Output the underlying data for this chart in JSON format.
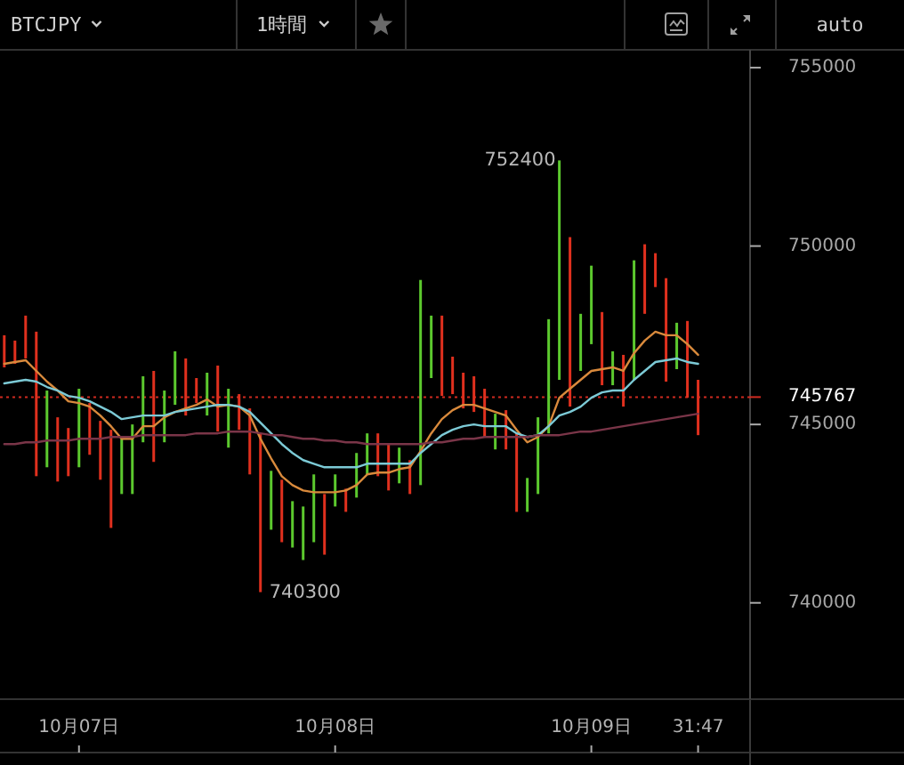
{
  "chart_data": {
    "type": "bar",
    "title": "BTCJPY",
    "subtitle": "1時間",
    "annotations": [
      "752400",
      "740300",
      "auto"
    ],
    "categories": [
      null,
      null,
      null,
      null,
      null,
      null,
      null,
      "10月07日",
      null,
      null,
      null,
      null,
      null,
      null,
      null,
      null,
      null,
      null,
      null,
      null,
      null,
      null,
      null,
      null,
      null,
      null,
      null,
      null,
      null,
      null,
      null,
      "10月08日",
      null,
      null,
      null,
      null,
      null,
      null,
      null,
      null,
      null,
      null,
      null,
      null,
      null,
      null,
      null,
      null,
      null,
      null,
      null,
      null,
      null,
      null,
      null,
      "10月09日",
      null,
      null,
      null,
      null,
      null,
      null,
      null,
      null,
      null,
      "31:47"
    ],
    "ylim": [
      737300,
      755500
    ],
    "yticks": [
      740000,
      745000,
      750000,
      755000
    ],
    "series": [
      {
        "base": [
          746600,
          746700,
          746850,
          743550,
          743800,
          743400,
          743550,
          743800,
          744150,
          743450,
          742100,
          743050,
          743050,
          744500,
          743950,
          744500,
          745550,
          745250,
          745600,
          745250,
          744800,
          744350,
          744850,
          743600,
          740300,
          742050,
          741700,
          741550,
          741200,
          741700,
          741350,
          742700,
          742550,
          742950,
          743600,
          743550,
          743150,
          743350,
          743050,
          743300,
          746300,
          745800,
          745850,
          745450,
          745350,
          744650,
          744300,
          744300,
          742550,
          742550,
          743050,
          744750,
          746250,
          745500,
          746500,
          747250,
          746100,
          746100,
          745500,
          746250,
          748100,
          748850,
          746200,
          746550,
          745750,
          744700
        ],
        "values": [
          900,
          650,
          1200,
          4050,
          2150,
          1800,
          1350,
          2200,
          1450,
          1650,
          2750,
          1550,
          1950,
          1850,
          2550,
          1450,
          1500,
          1600,
          700,
          1200,
          1850,
          1650,
          1000,
          1850,
          4450,
          1650,
          1750,
          1300,
          1500,
          1900,
          1700,
          900,
          650,
          1250,
          1150,
          1200,
          1300,
          1000,
          950,
          5750,
          1750,
          2250,
          1050,
          1000,
          1000,
          1350,
          1000,
          1100,
          2200,
          950,
          2150,
          3200,
          6150,
          4750,
          1600,
          2200,
          2050,
          950,
          1450,
          3350,
          1950,
          950,
          2900,
          1300,
          2150,
          1550
        ],
        "colors": [
          "#e0301e",
          "#e0301e",
          "#e0301e",
          "#e0301e",
          "#5cc92e",
          "#e0301e",
          "#e0301e",
          "#5cc92e",
          "#e0301e",
          "#e0301e",
          "#e0301e",
          "#5cc92e",
          "#5cc92e",
          "#5cc92e",
          "#e0301e",
          "#5cc92e",
          "#5cc92e",
          "#e0301e",
          "#e0301e",
          "#5cc92e",
          "#e0301e",
          "#5cc92e",
          "#e0301e",
          "#e0301e",
          "#e0301e",
          "#5cc92e",
          "#e0301e",
          "#5cc92e",
          "#5cc92e",
          "#5cc92e",
          "#e0301e",
          "#5cc92e",
          "#e0301e",
          "#5cc92e",
          "#5cc92e",
          "#e0301e",
          "#e0301e",
          "#5cc92e",
          "#e0301e",
          "#5cc92e",
          "#5cc92e",
          "#e0301e",
          "#e0301e",
          "#e0301e",
          "#e0301e",
          "#e0301e",
          "#5cc92e",
          "#e0301e",
          "#e0301e",
          "#5cc92e",
          "#5cc92e",
          "#5cc92e",
          "#5cc92e",
          "#e0301e",
          "#5cc92e",
          "#5cc92e",
          "#e0301e",
          "#5cc92e",
          "#e0301e",
          "#5cc92e",
          "#e0301e",
          "#e0301e",
          "#e0301e",
          "#5cc92e",
          "#e0301e",
          "#e0301e"
        ]
      },
      {
        "type": "line",
        "color": "#d98a3c",
        "values": [
          746700,
          746750,
          746800,
          746500,
          746200,
          745950,
          745650,
          745600,
          745500,
          745250,
          744950,
          744600,
          744600,
          744950,
          744950,
          745200,
          745350,
          745450,
          745550,
          745700,
          745500,
          745550,
          745500,
          745250,
          744600,
          744050,
          743550,
          743300,
          743150,
          743100,
          743100,
          743100,
          743150,
          743300,
          743600,
          743650,
          743650,
          743750,
          743800,
          744250,
          744750,
          745150,
          745400,
          745550,
          745550,
          745450,
          745350,
          745250,
          744850,
          744500,
          744650,
          744950,
          745750,
          746000,
          746250,
          746500,
          746550,
          746600,
          746500,
          747000,
          747350,
          747600,
          747500,
          747500,
          747250,
          746950
        ]
      },
      {
        "type": "line",
        "color": "#7ccad6",
        "values": [
          746150,
          746200,
          746250,
          746200,
          746050,
          745950,
          745800,
          745750,
          745650,
          745500,
          745350,
          745150,
          745200,
          745250,
          745250,
          745250,
          745350,
          745400,
          745450,
          745500,
          745550,
          745550,
          745500,
          745350,
          745050,
          744750,
          744450,
          744200,
          744000,
          743900,
          743800,
          743800,
          743800,
          743800,
          743900,
          743900,
          743900,
          743900,
          743900,
          744200,
          744450,
          744700,
          744850,
          744950,
          745000,
          744950,
          744950,
          744950,
          744750,
          744650,
          744700,
          744950,
          745250,
          745350,
          745500,
          745750,
          745900,
          745950,
          745950,
          746250,
          746500,
          746750,
          746800,
          746850,
          746750,
          746700
        ]
      },
      {
        "type": "line",
        "color": "#7a3548",
        "values": [
          744450,
          744450,
          744500,
          744500,
          744550,
          744550,
          744550,
          744600,
          744600,
          744600,
          744650,
          744650,
          744650,
          744700,
          744700,
          744700,
          744700,
          744700,
          744750,
          744750,
          744750,
          744800,
          744800,
          744800,
          744750,
          744700,
          744700,
          744650,
          744600,
          744600,
          744550,
          744550,
          744500,
          744500,
          744450,
          744450,
          744450,
          744450,
          744450,
          744450,
          744500,
          744500,
          744550,
          744600,
          744600,
          744650,
          744650,
          744650,
          744650,
          744650,
          744700,
          744700,
          744700,
          744750,
          744800,
          744800,
          744850,
          744900,
          744950,
          745000,
          745050,
          745100,
          745150,
          745200,
          745250,
          745300
        ]
      }
    ],
    "ref_lines": [
      {
        "axis": "y",
        "value": 745767,
        "label": "745767",
        "color": "#d02a20",
        "line_style": "dotted"
      }
    ]
  }
}
